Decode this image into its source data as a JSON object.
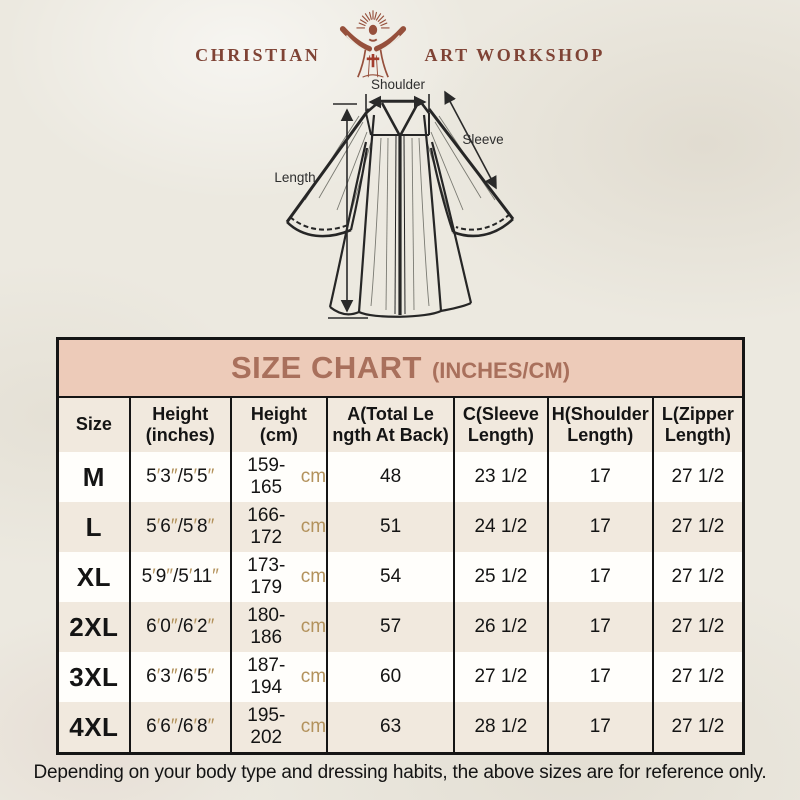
{
  "logo": {
    "brand_left": "CHRISTIAN",
    "brand_right": "ART WORKSHOP",
    "color": "#7f4335",
    "figure_icon": "jesus-open-arms-rays-figure",
    "cross_color": "#a23c2c"
  },
  "diagram": {
    "labels": {
      "shoulder": "Shoulder",
      "sleeve": "Sleeve",
      "length": "Length"
    },
    "line_color": "#2a2a2a"
  },
  "size_chart": {
    "title": "SIZE CHART",
    "title_suffix": "(INCHES/CM)",
    "title_color": "#a9705c",
    "band_color": "#edcbb9",
    "stripe_color": "#f1e9de",
    "unit_accent_color": "#b3925c",
    "headers": [
      {
        "line1": "Size",
        "line2": ""
      },
      {
        "line1": "Height",
        "line2": "(inches)"
      },
      {
        "line1": "Height",
        "line2": "(cm)"
      },
      {
        "line1": "A(Total Le",
        "line2": "ngth At Back)"
      },
      {
        "line1": "C(Sleeve",
        "line2": "Length)"
      },
      {
        "line1": "H(Shoulder",
        "line2": "Length)"
      },
      {
        "line1": "L(Zipper",
        "line2": "Length)"
      }
    ],
    "rows": [
      {
        "size": "M",
        "height_inches": "5′3″/5′5″",
        "height_cm": "159-165",
        "cm_unit": "cm",
        "total_length_at_back": "48",
        "sleeve_length": "23 1/2",
        "shoulder_length": "17",
        "zipper_length": "27 1/2"
      },
      {
        "size": "L",
        "height_inches": "5′6″/5′8″",
        "height_cm": "166-172",
        "cm_unit": "cm",
        "total_length_at_back": "51",
        "sleeve_length": "24 1/2",
        "shoulder_length": "17",
        "zipper_length": "27 1/2"
      },
      {
        "size": "XL",
        "height_inches": "5′9″/5′11″",
        "height_cm": "173-179",
        "cm_unit": "cm",
        "total_length_at_back": "54",
        "sleeve_length": "25 1/2",
        "shoulder_length": "17",
        "zipper_length": "27 1/2"
      },
      {
        "size": "2XL",
        "height_inches": "6′0″/6′2″",
        "height_cm": "180-186",
        "cm_unit": "cm",
        "total_length_at_back": "57",
        "sleeve_length": "26 1/2",
        "shoulder_length": "17",
        "zipper_length": "27 1/2"
      },
      {
        "size": "3XL",
        "height_inches": "6′3″/6′5″",
        "height_cm": "187-194",
        "cm_unit": "cm",
        "total_length_at_back": "60",
        "sleeve_length": "27 1/2",
        "shoulder_length": "17",
        "zipper_length": "27 1/2"
      },
      {
        "size": "4XL",
        "height_inches": "6′6″/6′8″",
        "height_cm": "195-202",
        "cm_unit": "cm",
        "total_length_at_back": "63",
        "sleeve_length": "28 1/2",
        "shoulder_length": "17",
        "zipper_length": "27 1/2"
      }
    ]
  },
  "footer": {
    "note": "Depending on your body type and dressing habits, the above sizes are for reference only."
  }
}
